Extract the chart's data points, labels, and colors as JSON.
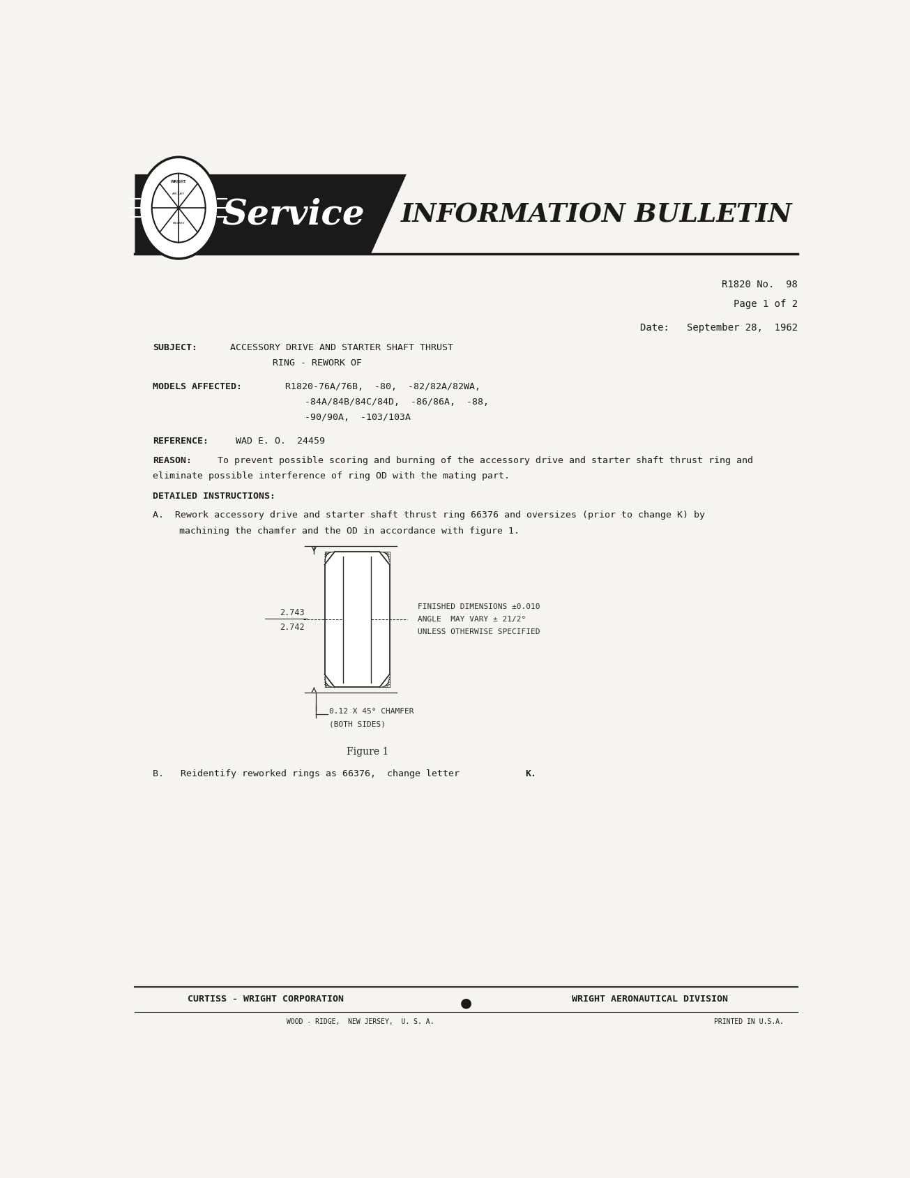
{
  "bg_color": "#f5f4f0",
  "text_color": "#1a1a1a",
  "page_width": 13.05,
  "page_height": 16.9,
  "bulletin_number": "R1820 No.  98",
  "page_info": "Page 1 of 2",
  "date_info": "Date:   September 28,  1962",
  "subject_label": "SUBJECT:",
  "subject_line1": "ACCESSORY DRIVE AND STARTER SHAFT THRUST",
  "subject_line2": "RING - REWORK OF",
  "models_label": "MODELS AFFECTED:",
  "models_line1": "R1820-76A/76B,  -80,  -82/82A/82WA,",
  "models_line2": "-84A/84B/84C/84D,  -86/86A,  -88,",
  "models_line3": "-90/90A,  -103/103A",
  "reference_label": "REFERENCE:",
  "reference_text": "WAD E. O.  24459",
  "reason_label": "REASON:",
  "detailed_label": "DETAILED INSTRUCTIONS:",
  "dim_upper": "2.743",
  "dim_lower": "2.742",
  "fig_note1": "FINISHED DIMENSIONS ±0.010",
  "fig_note2": "ANGLE  MAY VARY ± 21/2°",
  "fig_note3": "UNLESS OTHERWISE SPECIFIED",
  "chamfer_label1": "0.12 X 45° CHAMFER",
  "chamfer_label2": "(BOTH SIDES)",
  "figure_caption": "Figure 1",
  "footer_left": "CURTISS - WRIGHT CORPORATION",
  "footer_center": "●",
  "footer_right": "WRIGHT AERONAUTICAL DIVISION",
  "footer_bottom": "WOOD - RIDGE,  NEW JERSEY,  U. S. A.",
  "footer_bottom_right": "PRINTED IN U.S.A."
}
